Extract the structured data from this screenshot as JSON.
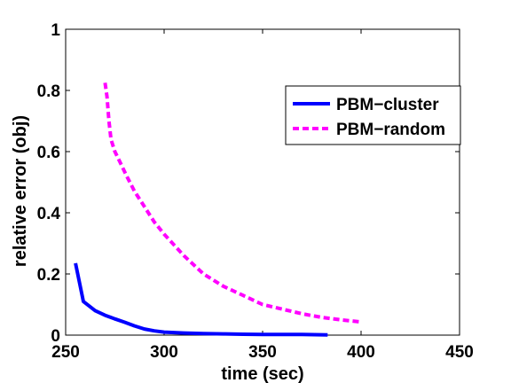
{
  "chart_data": {
    "type": "line",
    "title": "",
    "xlabel": "time (sec)",
    "ylabel": "relative error (obj)",
    "xlim": [
      250,
      450
    ],
    "ylim": [
      0,
      1
    ],
    "xticks": [
      250,
      300,
      350,
      400,
      450
    ],
    "yticks": [
      0,
      0.2,
      0.4,
      0.6,
      0.8,
      1
    ],
    "ytick_labels": [
      "0",
      "0.2",
      "0.4",
      "0.6",
      "0.8",
      "1"
    ],
    "xtick_labels": [
      "250",
      "300",
      "350",
      "400",
      "450"
    ],
    "grid": false,
    "legend_position": "top-right",
    "series": [
      {
        "name": "PBM−cluster",
        "color": "#0000ff",
        "style": "solid",
        "x": [
          255,
          259,
          265,
          270,
          275,
          280,
          285,
          290,
          295,
          300,
          310,
          320,
          330,
          340,
          350,
          360,
          370,
          383
        ],
        "y": [
          0.235,
          0.11,
          0.08,
          0.065,
          0.053,
          0.042,
          0.03,
          0.02,
          0.014,
          0.01,
          0.007,
          0.005,
          0.004,
          0.003,
          0.002,
          0.002,
          0.002,
          0.001
        ]
      },
      {
        "name": "PBM−random",
        "color": "#ff00ff",
        "style": "dashed",
        "x": [
          270,
          271,
          272,
          273,
          275,
          278,
          281,
          285,
          290,
          295,
          300,
          310,
          320,
          330,
          340,
          350,
          360,
          370,
          380,
          390,
          400
        ],
        "y": [
          0.825,
          0.78,
          0.7,
          0.64,
          0.6,
          0.56,
          0.52,
          0.47,
          0.42,
          0.37,
          0.33,
          0.26,
          0.2,
          0.16,
          0.13,
          0.1,
          0.085,
          0.07,
          0.058,
          0.05,
          0.043
        ]
      }
    ]
  }
}
